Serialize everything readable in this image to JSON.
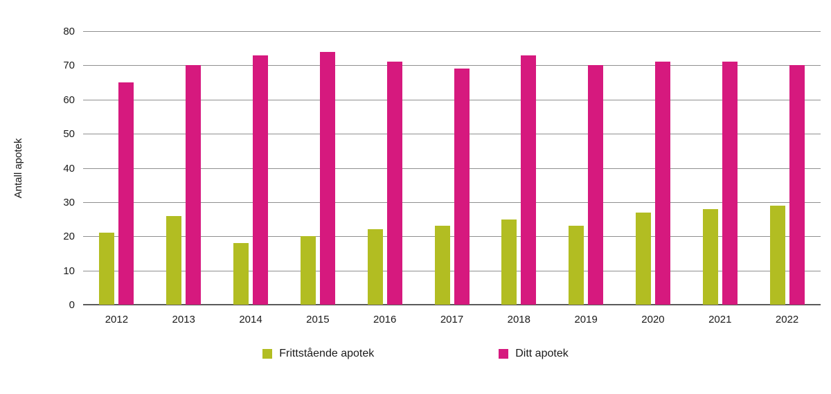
{
  "chart_data": {
    "type": "bar",
    "title": "",
    "xlabel": "",
    "ylabel": "Antall apotek",
    "ylim": [
      0,
      80
    ],
    "ytick_step": 10,
    "grid": true,
    "legend_position": "bottom",
    "categories": [
      "2012",
      "2013",
      "2014",
      "2015",
      "2016",
      "2017",
      "2018",
      "2019",
      "2020",
      "2021",
      "2022"
    ],
    "series": [
      {
        "name": "Frittstående apotek",
        "color": "#b2bd22",
        "values": [
          21,
          26,
          18,
          20,
          22,
          23,
          25,
          23,
          27,
          28,
          29
        ]
      },
      {
        "name": "Ditt apotek",
        "color": "#d6197e",
        "values": [
          65,
          70,
          73,
          74,
          71,
          69,
          73,
          70,
          71,
          71,
          70
        ]
      }
    ],
    "colors": {
      "gridline": "#8f8f8f",
      "axis": "#5a5a5a",
      "text": "#1a1a1a",
      "background": "#ffffff"
    }
  }
}
